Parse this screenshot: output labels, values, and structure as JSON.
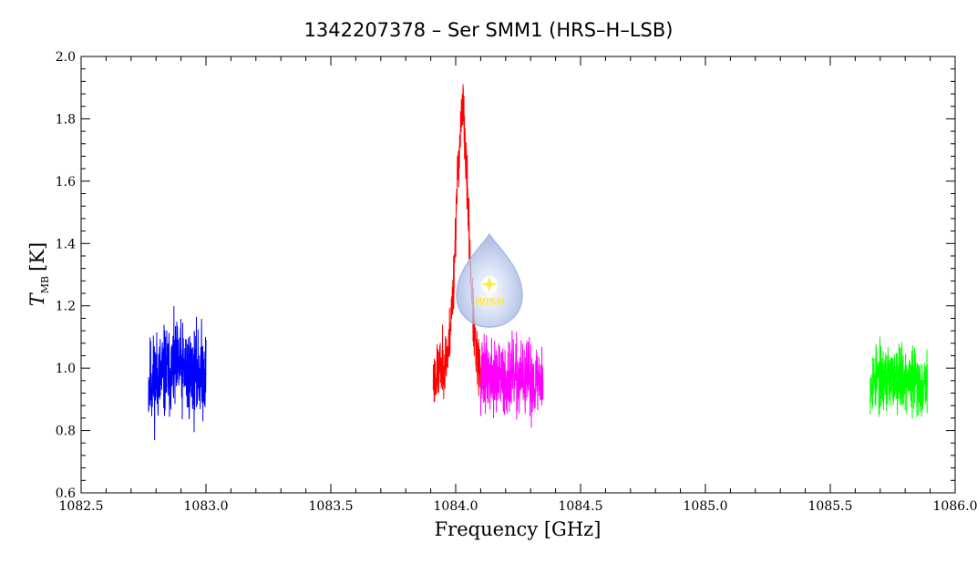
{
  "chart_data": {
    "type": "line",
    "title": "1342207378 – Ser SMM1 (HRS–H–LSB)",
    "xlabel": "Frequency [GHz]",
    "ylabel_main": "T",
    "ylabel_sub": "MB",
    "ylabel_unit": "[K]",
    "xlim": [
      1082.5,
      1086.0
    ],
    "ylim": [
      0.6,
      2.0
    ],
    "x_major_ticks": [
      1082.5,
      1083.0,
      1083.5,
      1084.0,
      1084.5,
      1085.0,
      1085.5,
      1086.0
    ],
    "x_tick_labels": [
      "1082.5",
      "1083.0",
      "1083.5",
      "1084.0",
      "1084.5",
      "1085.0",
      "1085.5",
      "1086.0"
    ],
    "y_major_ticks": [
      0.6,
      0.8,
      1.0,
      1.2,
      1.4,
      1.6,
      1.8,
      2.0
    ],
    "y_tick_labels": [
      "0.6",
      "0.8",
      "1.0",
      "1.2",
      "1.4",
      "1.6",
      "1.8",
      "2.0"
    ],
    "grid": false,
    "series": [
      {
        "color": "#0000ff",
        "noise_seed": 11,
        "x": [
          1082.77,
          1082.8,
          1082.83,
          1082.86,
          1082.89,
          1082.92,
          1082.95,
          1082.98,
          1083.0
        ],
        "y": [
          0.95,
          0.97,
          0.98,
          0.99,
          1.0,
          0.99,
          0.98,
          0.99,
          0.98
        ],
        "noise_amplitude": 0.11
      },
      {
        "color": "#ff0000",
        "noise_seed": 23,
        "x": [
          1083.91,
          1083.94,
          1083.97,
          1083.99,
          1084.0,
          1084.01,
          1084.02,
          1084.03,
          1084.04,
          1084.05,
          1084.06,
          1084.07,
          1084.08,
          1084.1
        ],
        "y": [
          0.96,
          1.0,
          1.05,
          1.25,
          1.45,
          1.66,
          1.76,
          1.85,
          1.66,
          1.52,
          1.32,
          1.16,
          1.05,
          0.97
        ],
        "noise_amplitude": 0.07
      },
      {
        "color": "#ff00ff",
        "noise_seed": 37,
        "x": [
          1084.1,
          1084.14,
          1084.18,
          1084.22,
          1084.26,
          1084.3,
          1084.35
        ],
        "y": [
          0.98,
          0.97,
          0.96,
          0.97,
          0.96,
          0.96,
          0.96
        ],
        "noise_amplitude": 0.09
      },
      {
        "color": "#00ff00",
        "noise_seed": 53,
        "x": [
          1085.66,
          1085.7,
          1085.74,
          1085.78,
          1085.82,
          1085.86,
          1085.89
        ],
        "y": [
          0.96,
          0.97,
          0.96,
          0.98,
          0.96,
          0.95,
          0.96
        ],
        "noise_amplitude": 0.08
      }
    ]
  },
  "logo": {
    "text": "WISH",
    "body_color": "#aebfe8",
    "glow_color": "#ffffff",
    "star_color": "#ffe94a"
  }
}
